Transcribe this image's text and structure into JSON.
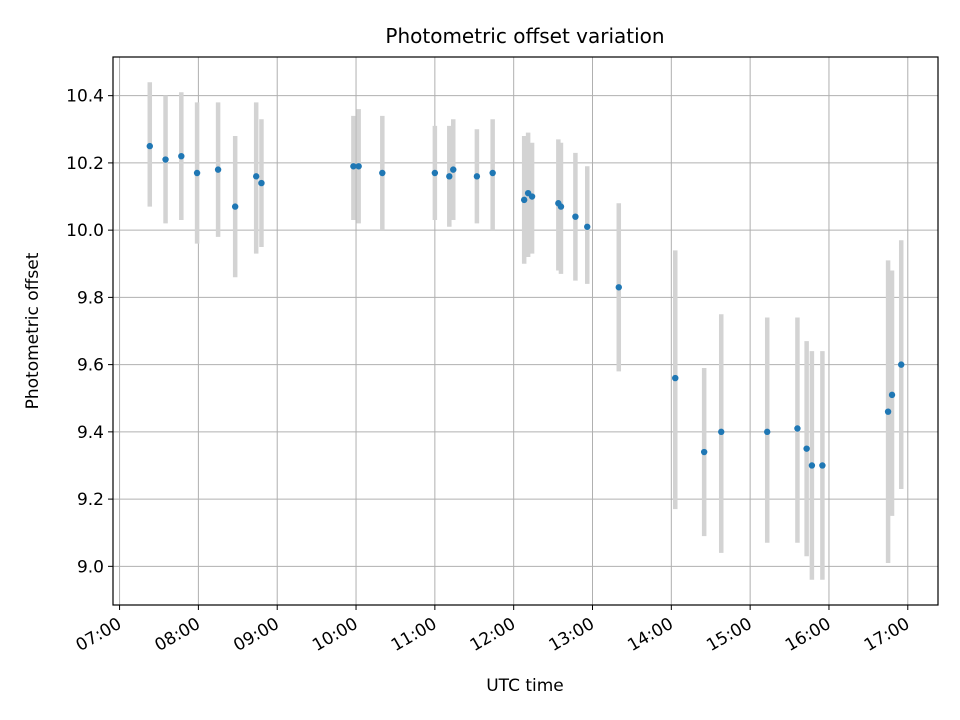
{
  "chart_data": {
    "type": "scatter",
    "title": "Photometric offset variation",
    "xlabel": "UTC time",
    "ylabel": "Photometric offset",
    "x_unit": "UTC time (HH:MM)",
    "xlim": [
      "06:55",
      "17:23"
    ],
    "ylim": [
      8.885,
      10.515
    ],
    "x_ticks": [
      "07:00",
      "08:00",
      "09:00",
      "10:00",
      "11:00",
      "12:00",
      "13:00",
      "14:00",
      "15:00",
      "16:00",
      "17:00"
    ],
    "y_ticks": [
      9.0,
      9.2,
      9.4,
      9.6,
      9.8,
      10.0,
      10.2,
      10.4
    ],
    "y_tick_labels": [
      "9.0",
      "9.2",
      "9.4",
      "9.6",
      "9.8",
      "10.0",
      "10.2",
      "10.4"
    ],
    "grid": true,
    "marker_color": "#1f77b4",
    "errorbar_color": "#d3d3d3",
    "points": [
      {
        "x": "07:23",
        "y": 10.25,
        "lo": 10.07,
        "hi": 10.44
      },
      {
        "x": "07:35",
        "y": 10.21,
        "lo": 10.02,
        "hi": 10.4
      },
      {
        "x": "07:47",
        "y": 10.22,
        "lo": 10.03,
        "hi": 10.41
      },
      {
        "x": "07:59",
        "y": 10.17,
        "lo": 9.96,
        "hi": 10.38
      },
      {
        "x": "08:15",
        "y": 10.18,
        "lo": 9.98,
        "hi": 10.38
      },
      {
        "x": "08:28",
        "y": 10.07,
        "lo": 9.86,
        "hi": 10.28
      },
      {
        "x": "08:44",
        "y": 10.16,
        "lo": 9.93,
        "hi": 10.38
      },
      {
        "x": "08:48",
        "y": 10.14,
        "lo": 9.95,
        "hi": 10.33
      },
      {
        "x": "09:58",
        "y": 10.19,
        "lo": 10.03,
        "hi": 10.34
      },
      {
        "x": "10:02",
        "y": 10.19,
        "lo": 10.02,
        "hi": 10.36
      },
      {
        "x": "10:20",
        "y": 10.17,
        "lo": 10.0,
        "hi": 10.34
      },
      {
        "x": "11:00",
        "y": 10.17,
        "lo": 10.03,
        "hi": 10.31
      },
      {
        "x": "11:11",
        "y": 10.16,
        "lo": 10.01,
        "hi": 10.31
      },
      {
        "x": "11:14",
        "y": 10.18,
        "lo": 10.03,
        "hi": 10.33
      },
      {
        "x": "11:32",
        "y": 10.16,
        "lo": 10.02,
        "hi": 10.3
      },
      {
        "x": "11:44",
        "y": 10.17,
        "lo": 10.0,
        "hi": 10.33
      },
      {
        "x": "12:08",
        "y": 10.09,
        "lo": 9.9,
        "hi": 10.28
      },
      {
        "x": "12:11",
        "y": 10.11,
        "lo": 9.92,
        "hi": 10.29
      },
      {
        "x": "12:14",
        "y": 10.1,
        "lo": 9.93,
        "hi": 10.26
      },
      {
        "x": "12:34",
        "y": 10.08,
        "lo": 9.88,
        "hi": 10.27
      },
      {
        "x": "12:36",
        "y": 10.07,
        "lo": 9.87,
        "hi": 10.26
      },
      {
        "x": "12:47",
        "y": 10.04,
        "lo": 9.85,
        "hi": 10.23
      },
      {
        "x": "12:56",
        "y": 10.01,
        "lo": 9.84,
        "hi": 10.19
      },
      {
        "x": "13:20",
        "y": 9.83,
        "lo": 9.58,
        "hi": 10.08
      },
      {
        "x": "14:03",
        "y": 9.56,
        "lo": 9.17,
        "hi": 9.94
      },
      {
        "x": "14:25",
        "y": 9.34,
        "lo": 9.09,
        "hi": 9.59
      },
      {
        "x": "14:38",
        "y": 9.4,
        "lo": 9.04,
        "hi": 9.75
      },
      {
        "x": "15:13",
        "y": 9.4,
        "lo": 9.07,
        "hi": 9.74
      },
      {
        "x": "15:36",
        "y": 9.41,
        "lo": 9.07,
        "hi": 9.74
      },
      {
        "x": "15:43",
        "y": 9.35,
        "lo": 9.03,
        "hi": 9.67
      },
      {
        "x": "15:47",
        "y": 9.3,
        "lo": 8.96,
        "hi": 9.64
      },
      {
        "x": "15:55",
        "y": 9.3,
        "lo": 8.96,
        "hi": 9.64
      },
      {
        "x": "16:45",
        "y": 9.46,
        "lo": 9.01,
        "hi": 9.91
      },
      {
        "x": "16:48",
        "y": 9.51,
        "lo": 9.15,
        "hi": 9.88
      },
      {
        "x": "16:55",
        "y": 9.6,
        "lo": 9.23,
        "hi": 9.97
      }
    ]
  }
}
